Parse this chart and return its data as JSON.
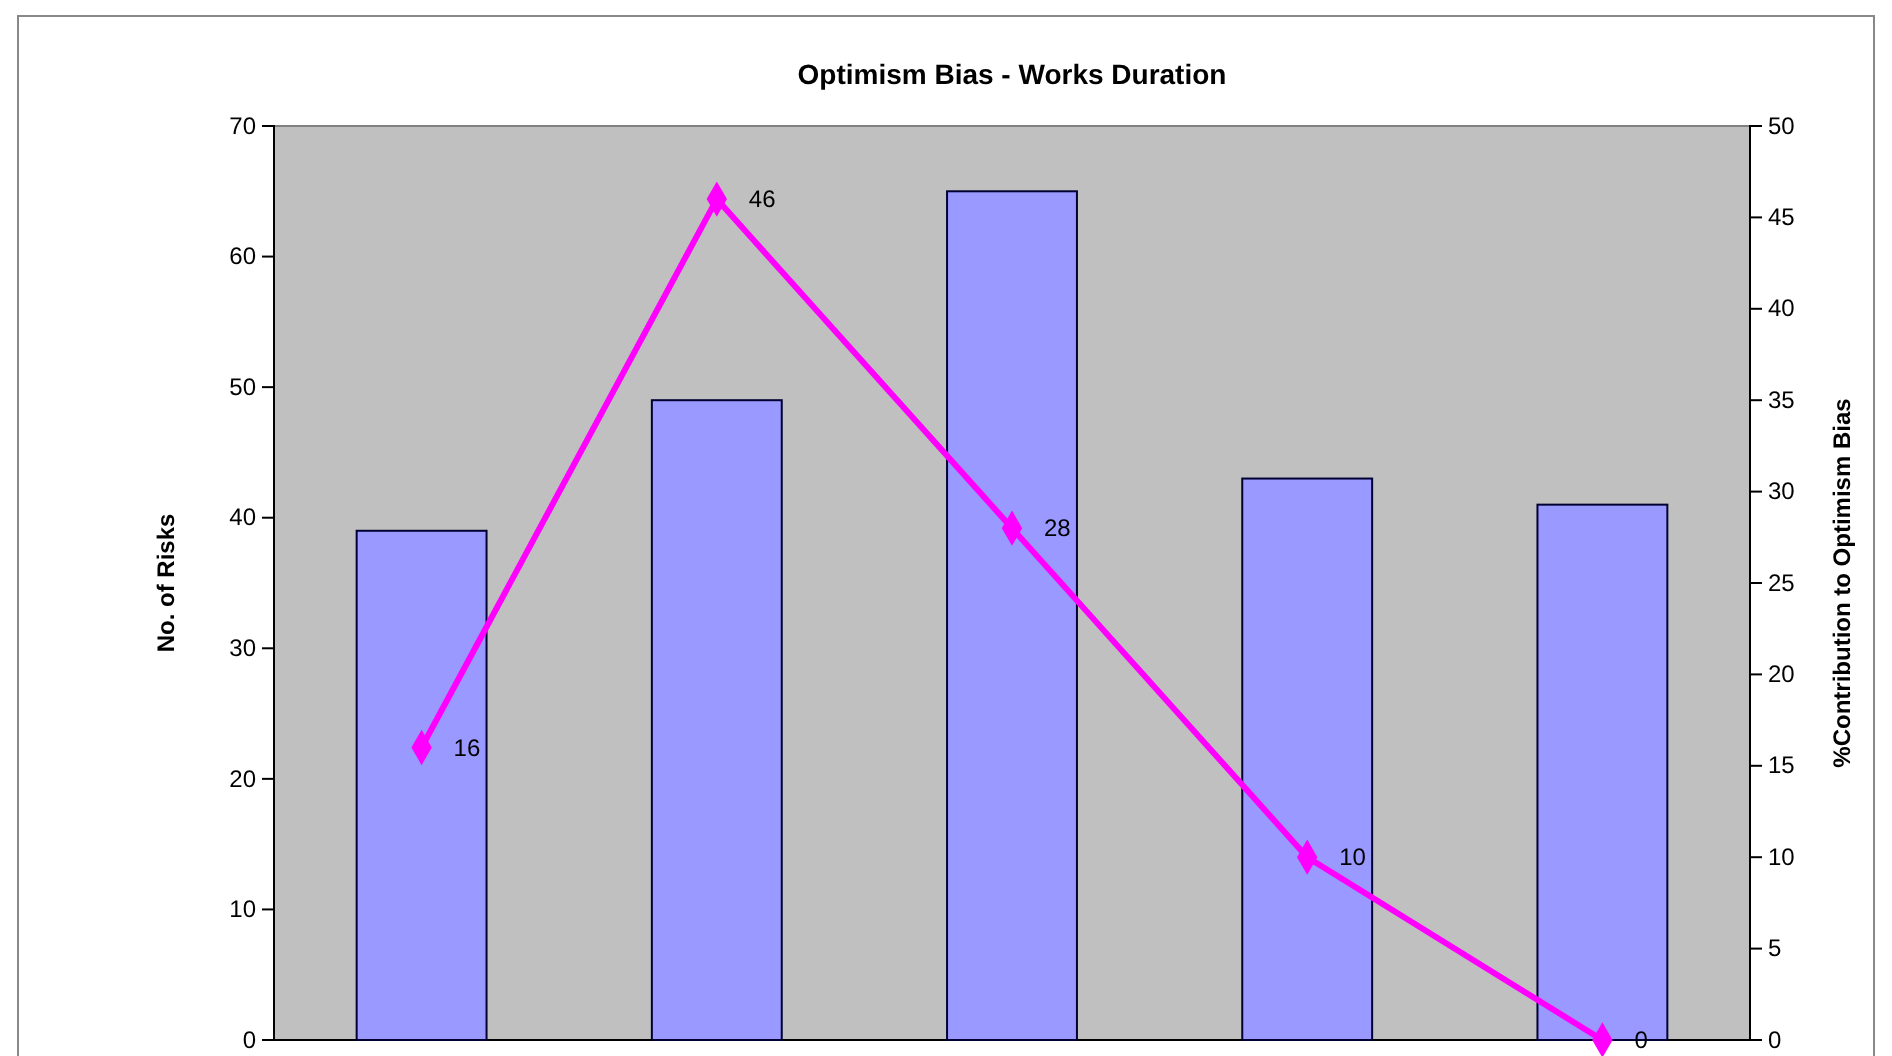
{
  "chart_data": {
    "type": "bar",
    "title": "Optimism Bias - Works Duration",
    "ylabel": "No. of Risks",
    "y2label": "%Contribution to Optimism Bias",
    "categories": [
      null,
      null,
      null,
      null,
      null
    ],
    "series": [
      {
        "color": "#9999ff",
        "values": [
          39,
          49,
          65,
          43,
          41
        ]
      },
      {
        "type": "line",
        "axis": "y2",
        "color": "#ff00ff",
        "marker": "diamond",
        "values": [
          16,
          46,
          28,
          10,
          0
        ],
        "value_labels": [
          "16",
          "46",
          "28",
          "10",
          "0"
        ]
      }
    ],
    "ylim": [
      0,
      70
    ],
    "yticks": [
      0,
      10,
      20,
      30,
      40,
      50,
      60,
      70
    ],
    "y2lim": [
      0,
      50
    ],
    "y2ticks": [
      0,
      5,
      10,
      15,
      20,
      25,
      30,
      35,
      40,
      45,
      50
    ]
  }
}
